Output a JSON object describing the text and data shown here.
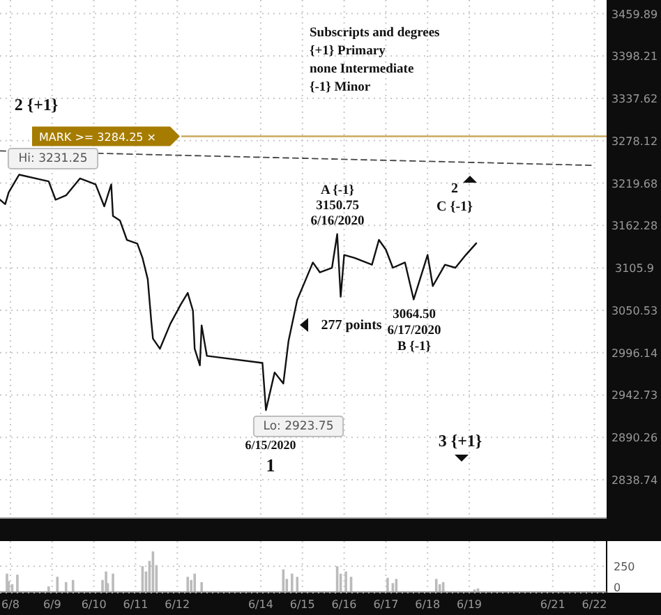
{
  "chart_data": [
    {
      "type": "line",
      "log": "y",
      "grid": true,
      "tick_labels": "y",
      "xlim": [
        "2020-06-07T18:00",
        "2020-06-22T07:00"
      ],
      "ylim": [
        2792,
        3480
      ],
      "yticks": [
        3459.89,
        3398.21,
        3337.62,
        3278.12,
        3219.68,
        3162.28,
        3105.9,
        3050.53,
        2996.14,
        2942.73,
        2890.26,
        2838.74
      ],
      "xticks": [
        {
          "value": "2020-06-08",
          "label": null
        },
        {
          "value": "2020-06-09",
          "label": null
        },
        {
          "value": "2020-06-10",
          "label": null
        },
        {
          "value": "2020-06-11",
          "label": null
        },
        {
          "value": "2020-06-12",
          "label": null
        },
        {
          "value": "2020-06-14",
          "label": null
        },
        {
          "value": "2020-06-15",
          "label": null
        },
        {
          "value": "2020-06-16",
          "label": null
        },
        {
          "value": "2020-06-17",
          "label": null
        },
        {
          "value": "2020-06-18",
          "label": null
        },
        {
          "value": "2020-06-19",
          "label": null
        },
        {
          "value": "2020-06-21",
          "label": null
        },
        {
          "value": "2020-06-22",
          "label": null
        }
      ],
      "series": [
        {
          "color": "#111111",
          "line_style": "solid",
          "x": [
            "2020-06-07T18:00",
            "2020-06-07T21:00",
            "2020-06-07T23:00",
            "2020-06-08T05:00",
            "2020-06-08T22:00",
            "2020-06-09T02:00",
            "2020-06-09T08:00",
            "2020-06-09T16:00",
            "2020-06-10T01:00",
            "2020-06-10T06:00",
            "2020-06-10T10:00",
            "2020-06-10T11:00",
            "2020-06-10T15:00",
            "2020-06-10T19:00",
            "2020-06-11T01:00",
            "2020-06-11T04:00",
            "2020-06-11T07:00",
            "2020-06-11T09:00",
            "2020-06-11T10:00",
            "2020-06-11T14:00",
            "2020-06-11T20:00",
            "2020-06-12T02:00",
            "2020-06-12T06:00",
            "2020-06-12T09:00",
            "2020-06-12T10:00",
            "2020-06-12T13:00",
            "2020-06-12T14:00",
            "2020-06-12T17:00",
            "2020-06-14T01:00",
            "2020-06-14T03:00",
            "2020-06-14T08:00",
            "2020-06-14T13:00",
            "2020-06-14T16:00",
            "2020-06-14T21:00",
            "2020-06-15T02:00",
            "2020-06-15T06:00",
            "2020-06-15T10:00",
            "2020-06-15T17:00",
            "2020-06-15T20:00",
            "2020-06-15T22:00",
            "2020-06-16T00:00",
            "2020-06-16T06:00",
            "2020-06-16T16:00",
            "2020-06-16T20:00",
            "2020-06-17T00:00",
            "2020-06-17T04:00",
            "2020-06-17T11:00",
            "2020-06-17T16:00",
            "2020-06-18T00:00",
            "2020-06-18T03:00",
            "2020-06-18T10:00",
            "2020-06-18T16:00",
            "2020-06-18T22:00",
            "2020-06-19T04:00"
          ],
          "values": [
            3197,
            3191,
            3207,
            3231.25,
            3222,
            3197,
            3203,
            3226,
            3218,
            3188,
            3218,
            3175,
            3169,
            3143,
            3138,
            3119,
            3091,
            3037,
            3014,
            3001,
            3033,
            3058,
            3073,
            3050,
            3001,
            2980,
            3031,
            2992,
            2983,
            2923.75,
            2971,
            2957,
            3011,
            3064,
            3091,
            3113,
            3100,
            3106,
            3150.75,
            3068,
            3123,
            3119,
            3110,
            3143,
            3130,
            3106,
            3113,
            3064.5,
            3123,
            3082,
            3110,
            3106,
            3123,
            3138.5
          ]
        },
        {
          "type": "line",
          "color": "#444444",
          "line_style": "dashed",
          "x": [
            "2020-06-07T18:00",
            "2020-06-22T00:00"
          ],
          "values": [
            3264,
            3244
          ]
        }
      ],
      "ref_lines": [
        {
          "axis": "y",
          "value": 3284.25,
          "label": "MARK >= 3284.25 ×",
          "color": "#c9a95c"
        }
      ],
      "annotations": [
        "Subscripts and degrees",
        "{+1} Primary",
        "none Intermediate",
        "{-1} Minor",
        "2 {+1}",
        "Hi: 3231.25",
        "A {-1}\n3150.75\n6/16/2020",
        "2\nC {-1}",
        "277 points",
        "3064.50\n6/17/2020\nB {-1}",
        "Lo: 2923.75",
        "6/15/2020\n1",
        "3 {+1}"
      ]
    },
    {
      "type": "bar",
      "xlim": [
        "2020-06-07T18:00",
        "2020-06-22T07:00"
      ],
      "ylim": [
        0,
        487
      ],
      "yticks": [
        0,
        250
      ],
      "grid": true,
      "xticks": [
        {
          "value": "2020-06-08",
          "label": "6/8"
        },
        {
          "value": "2020-06-09",
          "label": "6/9"
        },
        {
          "value": "2020-06-10",
          "label": "6/10"
        },
        {
          "value": "2020-06-11",
          "label": "6/11"
        },
        {
          "value": "2020-06-12",
          "label": "6/12"
        },
        {
          "value": "2020-06-14",
          "label": "6/14"
        },
        {
          "value": "2020-06-15",
          "label": "6/15"
        },
        {
          "value": "2020-06-16",
          "label": "6/16"
        },
        {
          "value": "2020-06-17",
          "label": "6/17"
        },
        {
          "value": "2020-06-18",
          "label": "6/18"
        },
        {
          "value": "2020-06-19",
          "label": "6/19"
        },
        {
          "value": "2020-06-21",
          "label": "6/21"
        },
        {
          "value": "2020-06-22",
          "label": "6/22"
        }
      ],
      "x": [
        "2020-06-07T22:00",
        "2020-06-07T23:00",
        "2020-06-08T01:00",
        "2020-06-08T04:00",
        "2020-06-08T22:00",
        "2020-06-09T03:00",
        "2020-06-09T08:00",
        "2020-06-09T12:00",
        "2020-06-10T05:00",
        "2020-06-10T07:00",
        "2020-06-10T08:00",
        "2020-06-10T11:00",
        "2020-06-11T04:00",
        "2020-06-11T06:00",
        "2020-06-11T08:00",
        "2020-06-11T10:00",
        "2020-06-11T12:00",
        "2020-06-12T06:00",
        "2020-06-12T08:00",
        "2020-06-12T10:00",
        "2020-06-12T14:00",
        "2020-06-14T13:00",
        "2020-06-14T15:00",
        "2020-06-14T18:00",
        "2020-06-14T21:00",
        "2020-06-15T20:00",
        "2020-06-15T22:00",
        "2020-06-16T01:00",
        "2020-06-16T04:00",
        "2020-06-17T01:00",
        "2020-06-17T04:00",
        "2020-06-17T06:00",
        "2020-06-18T05:00",
        "2020-06-18T07:00",
        "2020-06-18T09:00",
        "2020-06-19T03:00",
        "2020-06-19T05:00"
      ],
      "values": [
        180,
        110,
        80,
        170,
        60,
        150,
        100,
        120,
        120,
        200,
        90,
        180,
        250,
        200,
        300,
        390,
        260,
        150,
        120,
        180,
        100,
        220,
        130,
        180,
        150,
        250,
        180,
        200,
        150,
        140,
        90,
        130,
        130,
        80,
        100,
        30,
        40
      ],
      "color": "#bbbbbb"
    }
  ]
}
